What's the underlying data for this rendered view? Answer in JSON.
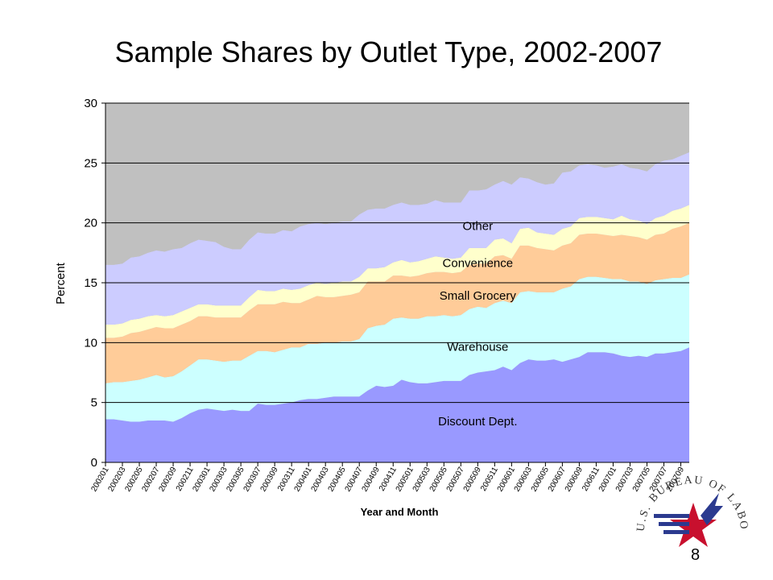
{
  "slide": {
    "title": "Sample Shares by Outlet Type, 2002-2007",
    "page_number": "8"
  },
  "logo": {
    "text": "U.S. BUREAU OF LABOR STATISTICS",
    "colors": {
      "blue": "#2b3a8f",
      "red": "#c8102e"
    }
  },
  "chart_data": {
    "type": "area",
    "stacked": true,
    "title": "",
    "xlabel": "Year and Month",
    "ylabel": "Percent",
    "ylim": [
      0,
      30
    ],
    "yticks": [
      0,
      5,
      10,
      15,
      20,
      25,
      30
    ],
    "grid": {
      "horizontal": true,
      "vertical": false
    },
    "legend": "none (series labels placed inside areas)",
    "plot_background": "#c0c0c0",
    "x": [
      "200201",
      "200202",
      "200203",
      "200204",
      "200205",
      "200206",
      "200207",
      "200208",
      "200209",
      "200210",
      "200211",
      "200212",
      "200301",
      "200302",
      "200303",
      "200304",
      "200305",
      "200306",
      "200307",
      "200308",
      "200309",
      "200310",
      "200311",
      "200312",
      "200401",
      "200402",
      "200403",
      "200404",
      "200405",
      "200406",
      "200407",
      "200408",
      "200409",
      "200410",
      "200411",
      "200412",
      "200501",
      "200502",
      "200503",
      "200504",
      "200505",
      "200506",
      "200507",
      "200508",
      "200509",
      "200510",
      "200511",
      "200512",
      "200601",
      "200602",
      "200603",
      "200604",
      "200605",
      "200606",
      "200607",
      "200608",
      "200609",
      "200610",
      "200611",
      "200612",
      "200701",
      "200702",
      "200703",
      "200704",
      "200705",
      "200706",
      "200707",
      "200708",
      "200709",
      "200710"
    ],
    "xtick_labels": [
      "200201",
      "200203",
      "200205",
      "200207",
      "200209",
      "200211",
      "200301",
      "200303",
      "200305",
      "200307",
      "200309",
      "200311",
      "200401",
      "200403",
      "200405",
      "200407",
      "200409",
      "200411",
      "200501",
      "200503",
      "200505",
      "200507",
      "200509",
      "200511",
      "200601",
      "200603",
      "200605",
      "200607",
      "200609",
      "200611",
      "200701",
      "200703",
      "200705",
      "200707",
      "200709"
    ],
    "series": [
      {
        "name": "Discount Dept.",
        "color": "#9999ff",
        "values": [
          3.6,
          3.6,
          3.5,
          3.4,
          3.4,
          3.5,
          3.5,
          3.5,
          3.4,
          3.7,
          4.1,
          4.4,
          4.5,
          4.4,
          4.3,
          4.4,
          4.3,
          4.3,
          4.9,
          4.8,
          4.8,
          4.9,
          5.0,
          5.2,
          5.3,
          5.3,
          5.4,
          5.5,
          5.5,
          5.5,
          5.5,
          6.0,
          6.4,
          6.3,
          6.4,
          6.9,
          6.7,
          6.6,
          6.6,
          6.7,
          6.8,
          6.8,
          6.8,
          7.3,
          7.5,
          7.6,
          7.7,
          8.0,
          7.7,
          8.3,
          8.6,
          8.5,
          8.5,
          8.6,
          8.4,
          8.6,
          8.8,
          9.2,
          9.2,
          9.2,
          9.1,
          8.9,
          8.8,
          8.9,
          8.8,
          9.1,
          9.1,
          9.2,
          9.3,
          9.6
        ]
      },
      {
        "name": "Warehouse",
        "color": "#ccffff",
        "values": [
          3.0,
          3.1,
          3.2,
          3.4,
          3.5,
          3.6,
          3.8,
          3.6,
          3.8,
          3.9,
          4.0,
          4.2,
          4.1,
          4.1,
          4.1,
          4.1,
          4.2,
          4.6,
          4.4,
          4.5,
          4.4,
          4.5,
          4.6,
          4.4,
          4.6,
          4.6,
          4.6,
          4.5,
          4.6,
          4.6,
          4.8,
          5.2,
          5.0,
          5.2,
          5.6,
          5.2,
          5.3,
          5.4,
          5.6,
          5.5,
          5.5,
          5.4,
          5.5,
          5.5,
          5.5,
          5.3,
          5.6,
          5.5,
          5.6,
          5.9,
          5.7,
          5.7,
          5.7,
          5.6,
          6.1,
          6.1,
          6.5,
          6.3,
          6.3,
          6.2,
          6.2,
          6.4,
          6.3,
          6.2,
          6.1,
          6.1,
          6.2,
          6.2,
          6.1,
          6.1
        ]
      },
      {
        "name": "Small Grocery",
        "color": "#ffcc99",
        "values": [
          3.8,
          3.7,
          3.8,
          4.0,
          4.0,
          4.0,
          4.0,
          4.1,
          4.0,
          3.9,
          3.7,
          3.6,
          3.6,
          3.6,
          3.7,
          3.6,
          3.6,
          3.8,
          3.9,
          3.9,
          4.0,
          4.0,
          3.7,
          3.7,
          3.7,
          4.0,
          3.8,
          3.8,
          3.8,
          3.9,
          3.9,
          3.9,
          3.7,
          3.6,
          3.6,
          3.5,
          3.5,
          3.6,
          3.6,
          3.7,
          3.6,
          3.6,
          3.6,
          3.7,
          3.6,
          3.7,
          3.9,
          3.8,
          3.7,
          3.9,
          3.8,
          3.7,
          3.6,
          3.5,
          3.6,
          3.6,
          3.7,
          3.6,
          3.6,
          3.6,
          3.6,
          3.7,
          3.8,
          3.7,
          3.7,
          3.8,
          3.8,
          4.1,
          4.3,
          4.3
        ]
      },
      {
        "name": "Convenience",
        "color": "#ffffcc",
        "values": [
          1.1,
          1.1,
          1.1,
          1.1,
          1.1,
          1.1,
          1.0,
          1.0,
          1.1,
          1.1,
          1.1,
          1.0,
          1.0,
          1.0,
          1.0,
          1.0,
          1.0,
          1.1,
          1.2,
          1.1,
          1.1,
          1.1,
          1.1,
          1.2,
          1.2,
          1.1,
          1.1,
          1.2,
          1.2,
          1.1,
          1.3,
          1.1,
          1.1,
          1.2,
          1.1,
          1.3,
          1.2,
          1.2,
          1.2,
          1.3,
          1.2,
          1.2,
          1.2,
          1.4,
          1.3,
          1.3,
          1.4,
          1.4,
          1.3,
          1.4,
          1.5,
          1.3,
          1.3,
          1.3,
          1.4,
          1.4,
          1.4,
          1.4,
          1.4,
          1.4,
          1.4,
          1.6,
          1.4,
          1.4,
          1.3,
          1.4,
          1.5,
          1.5,
          1.5,
          1.5
        ]
      },
      {
        "name": "Other",
        "color": "#ccccff",
        "values": [
          5.0,
          5.0,
          5.0,
          5.2,
          5.2,
          5.3,
          5.4,
          5.4,
          5.5,
          5.3,
          5.4,
          5.4,
          5.3,
          5.3,
          4.9,
          4.7,
          4.7,
          4.8,
          4.8,
          4.8,
          4.8,
          4.9,
          4.9,
          5.2,
          5.1,
          5.0,
          5.0,
          5.0,
          5.0,
          5.0,
          5.2,
          4.9,
          5.0,
          4.9,
          4.8,
          4.8,
          4.8,
          4.7,
          4.6,
          4.7,
          4.6,
          4.7,
          4.6,
          4.8,
          4.8,
          4.9,
          4.6,
          4.8,
          4.9,
          4.3,
          4.1,
          4.2,
          4.1,
          4.3,
          4.7,
          4.6,
          4.4,
          4.4,
          4.3,
          4.2,
          4.4,
          4.3,
          4.3,
          4.3,
          4.4,
          4.5,
          4.6,
          4.3,
          4.4,
          4.4
        ]
      },
      {
        "name": "",
        "color": "#c0c0c0",
        "note_values_remainder_to_30": true,
        "values": [
          13.5,
          13.5,
          13.4,
          12.9,
          12.8,
          12.5,
          12.3,
          12.4,
          12.2,
          12.1,
          11.7,
          11.4,
          11.5,
          11.6,
          12.0,
          12.2,
          12.2,
          11.4,
          10.8,
          10.9,
          10.9,
          10.6,
          10.7,
          10.3,
          10.1,
          10.0,
          10.1,
          10.0,
          9.9,
          9.9,
          9.3,
          8.9,
          8.8,
          8.8,
          8.5,
          8.3,
          8.5,
          8.5,
          8.4,
          8.1,
          8.3,
          8.3,
          8.3,
          7.3,
          7.3,
          7.2,
          6.8,
          6.5,
          6.8,
          6.2,
          6.3,
          6.6,
          6.8,
          6.7,
          5.8,
          5.7,
          5.2,
          5.1,
          5.2,
          5.4,
          5.3,
          5.1,
          5.4,
          5.5,
          5.7,
          5.1,
          4.8,
          4.7,
          4.4,
          4.1
        ]
      }
    ],
    "series_labels": [
      {
        "text": "Discount Dept.",
        "at_x_index": 44,
        "at_y": 3.1
      },
      {
        "text": "Warehouse",
        "at_x_index": 44,
        "at_y": 9.3
      },
      {
        "text": "Small Grocery",
        "at_x_index": 44,
        "at_y": 13.6
      },
      {
        "text": "Convenience",
        "at_x_index": 44,
        "at_y": 16.3
      },
      {
        "text": "Other",
        "at_x_index": 44,
        "at_y": 19.4
      }
    ]
  }
}
